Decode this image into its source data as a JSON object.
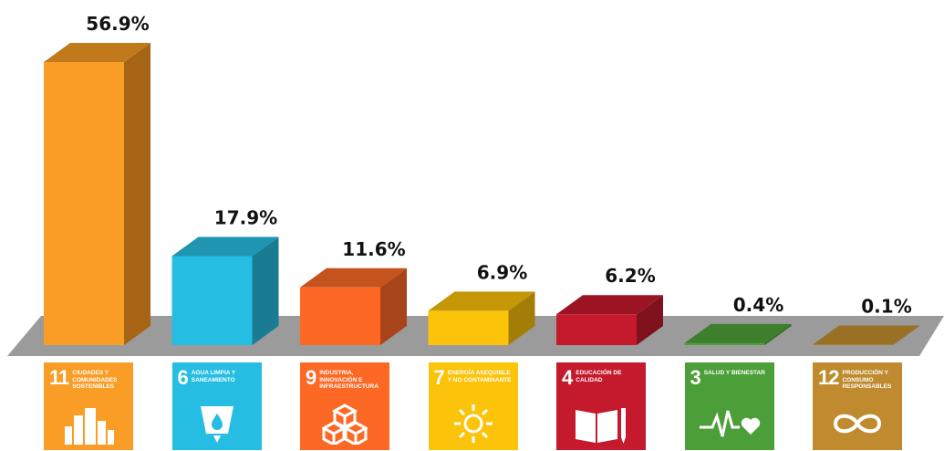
{
  "chart_data": {
    "type": "bar",
    "categories": [
      "11 Ciudades y comunidades sostenibles",
      "6 Agua limpia y saneamiento",
      "9 Industria, innovación e infraestructura",
      "7 Energía asequible y no contaminante",
      "4 Educación de calidad",
      "3 Salud y bienestar",
      "12 Producción y consumo responsables"
    ],
    "values": [
      56.9,
      17.9,
      11.6,
      6.9,
      6.2,
      0.4,
      0.1
    ],
    "value_labels": [
      "56.9%",
      "17.9%",
      "11.6%",
      "6.9%",
      "6.2%",
      "0.4%",
      "0.1%"
    ],
    "unit": "%",
    "ylim": [
      0,
      56.9
    ],
    "grid": false,
    "legend": "none",
    "colors": {
      "front": [
        "#F99D26",
        "#26BDE2",
        "#FD6925",
        "#FCC30B",
        "#C5192D",
        "#4C9F38",
        "#BF8B2E"
      ],
      "side": [
        "#A66414",
        "#1A7C93",
        "#A8441A",
        "#A37E07",
        "#80121D",
        "#336A25",
        "#7F5C1E"
      ],
      "top": [
        "#C07A1C",
        "#1F95B1",
        "#C4531E",
        "#C49707",
        "#9C1424",
        "#3D7F2C",
        "#9A7025"
      ],
      "floor": "#9B9B9B"
    }
  },
  "sdg_tiles": [
    {
      "number": "11",
      "name": "Ciudades y comunidades sostenibles",
      "icon": "city-buildings-icon",
      "color": "#F99D26"
    },
    {
      "number": "6",
      "name": "Agua limpia y saneamiento",
      "icon": "water-glass-icon",
      "color": "#26BDE2"
    },
    {
      "number": "9",
      "name": "Industria, innovación e infraestructura",
      "icon": "stacked-cubes-icon",
      "color": "#FD6925"
    },
    {
      "number": "7",
      "name": "Energía asequible y no contaminante",
      "icon": "sun-power-icon",
      "color": "#FCC30B"
    },
    {
      "number": "4",
      "name": "Educación de calidad",
      "icon": "book-pencil-icon",
      "color": "#C5192D"
    },
    {
      "number": "3",
      "name": "Salud y bienestar",
      "icon": "heartbeat-icon",
      "color": "#4C9F38"
    },
    {
      "number": "12",
      "name": "Producción y consumo responsables",
      "icon": "infinity-loop-icon",
      "color": "#BF8B2E"
    }
  ]
}
